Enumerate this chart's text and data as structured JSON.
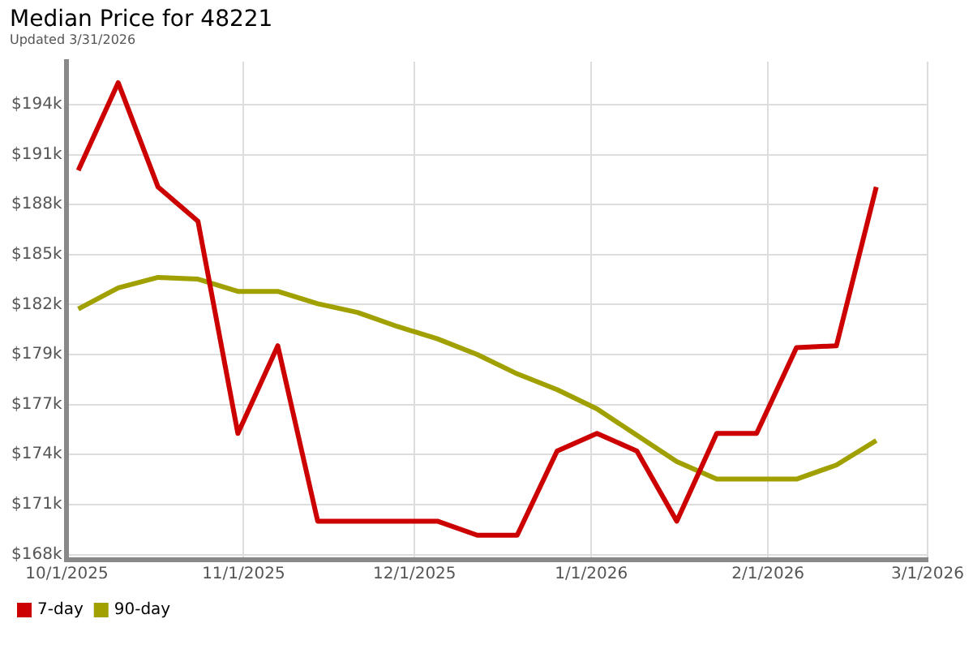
{
  "chart_data": {
    "type": "line",
    "title": "Median Price for 48221",
    "subtitle": "Updated 3/31/2026",
    "x": [
      "2025-10-03",
      "2025-10-10",
      "2025-10-17",
      "2025-10-24",
      "2025-10-31",
      "2025-11-07",
      "2025-11-14",
      "2025-11-21",
      "2025-11-28",
      "2025-12-05",
      "2025-12-12",
      "2025-12-19",
      "2025-12-26",
      "2026-01-02",
      "2026-01-09",
      "2026-01-16",
      "2026-01-23",
      "2026-01-30",
      "2026-02-06",
      "2026-02-13",
      "2026-02-20"
    ],
    "series": [
      {
        "name": "7-day",
        "color": "#cc0000",
        "values": [
          189900,
          194900,
          188950,
          187000,
          174900,
          179900,
          169900,
          169900,
          169900,
          169900,
          169100,
          169100,
          173900,
          174900,
          173900,
          169900,
          174900,
          174900,
          179800,
          179900,
          188950
        ]
      },
      {
        "name": "90-day",
        "color": "#a0a000",
        "values": [
          182000,
          183200,
          183800,
          183700,
          183000,
          183000,
          182300,
          181800,
          181000,
          180300,
          179400,
          178300,
          177400,
          176300,
          174800,
          173300,
          172300,
          172300,
          172300,
          173100,
          174500
        ]
      }
    ],
    "xlim": [
      "2025-10-01",
      "2026-03-01"
    ],
    "xticks": [
      {
        "value": "2025-10-01",
        "label": "10/1/2025"
      },
      {
        "value": "2025-11-01",
        "label": "11/1/2025"
      },
      {
        "value": "2025-12-01",
        "label": "12/1/2025"
      },
      {
        "value": "2026-01-01",
        "label": "1/1/2026"
      },
      {
        "value": "2026-02-01",
        "label": "2/1/2026"
      },
      {
        "value": "2026-03-01",
        "label": "3/1/2026"
      }
    ],
    "ylim": [
      167700,
      196100
    ],
    "yticks": [
      {
        "value": 168000,
        "label": "$168k"
      },
      {
        "value": 170850,
        "label": "$171k"
      },
      {
        "value": 173700,
        "label": "$174k"
      },
      {
        "value": 176550,
        "label": "$177k"
      },
      {
        "value": 179400,
        "label": "$179k"
      },
      {
        "value": 182250,
        "label": "$182k"
      },
      {
        "value": 185100,
        "label": "$185k"
      },
      {
        "value": 187950,
        "label": "$188k"
      },
      {
        "value": 190800,
        "label": "$191k"
      },
      {
        "value": 193650,
        "label": "$194k"
      }
    ],
    "grid": true,
    "legend": "bottom left",
    "marker": "none",
    "line_style": "solid"
  }
}
